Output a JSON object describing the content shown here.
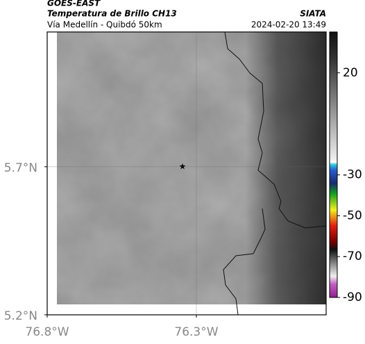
{
  "header": {
    "source": "GOES-EAST",
    "product": "Temperatura de Brillo CH13",
    "route": "Vía Medellín - Quibdó 50km",
    "agency": "SIATA",
    "datetime": "2024-02-20 13:49"
  },
  "map": {
    "xlim": [
      -76.8,
      -75.865
    ],
    "ylim": [
      5.2,
      6.155
    ],
    "xticks": [
      {
        "value": -76.8,
        "label": "76.8°W"
      },
      {
        "value": -76.3,
        "label": "76.3°W"
      }
    ],
    "yticks": [
      {
        "value": 5.2,
        "label": "5.2°N"
      },
      {
        "value": 5.7,
        "label": "5.7°N"
      }
    ]
  },
  "colorbar": {
    "lim": [
      -90,
      40
    ],
    "ticks": [
      20,
      -30,
      -50,
      -70,
      -90
    ]
  }
}
